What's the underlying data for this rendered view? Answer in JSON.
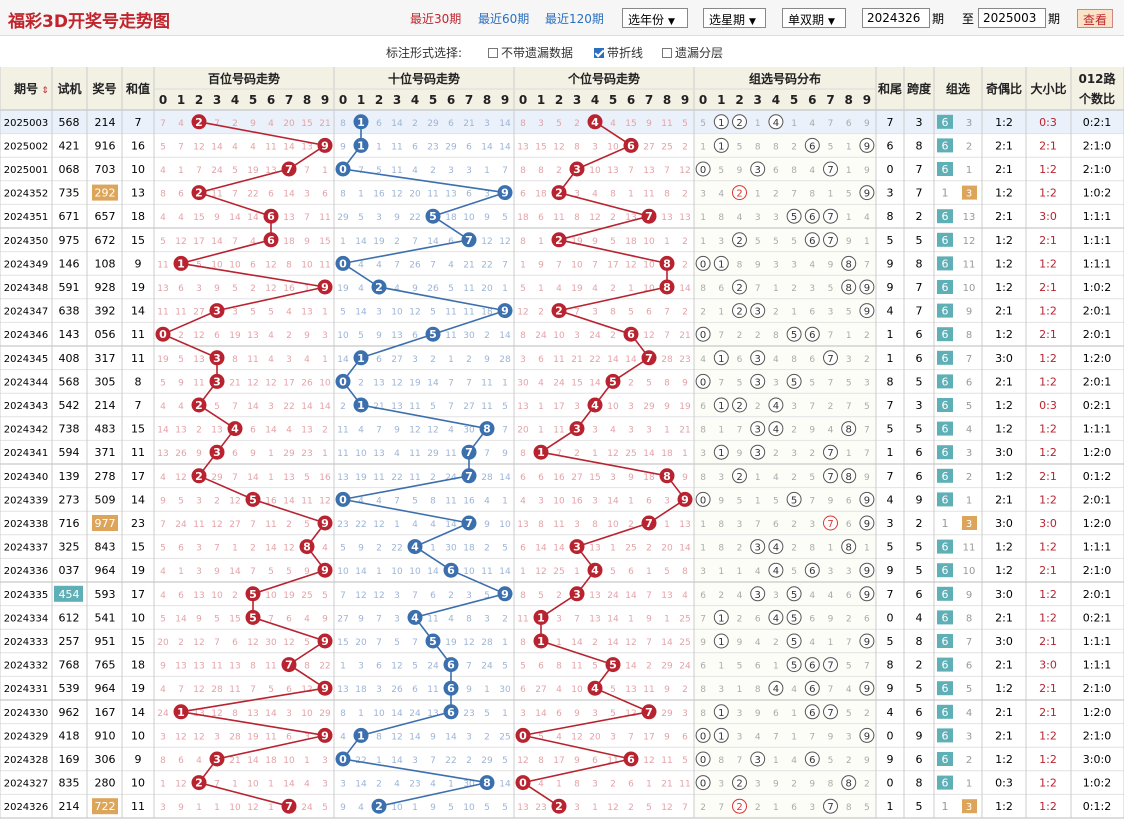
{
  "title": "福彩3D开奖号走势图",
  "period_links": [
    "最近30期",
    "最近60期",
    "最近120期"
  ],
  "selects": [
    "选年份",
    "选星期",
    "单双期"
  ],
  "range": {
    "from": "2024326",
    "unit": "期",
    "to_label": "至",
    "to": "2025003"
  },
  "query_label": "查看",
  "options": {
    "label": "标注形式选择:",
    "items": [
      {
        "label": "不带遗漏数据",
        "checked": false
      },
      {
        "label": "带折线",
        "checked": true
      },
      {
        "label": "遗漏分层",
        "checked": false
      }
    ]
  },
  "headers": {
    "issue": "期号",
    "trial": "试机",
    "prize": "奖号",
    "sum": "和值",
    "hundreds": "百位号码走势",
    "tens": "十位号码走势",
    "units": "个位号码走势",
    "group": "组选号码分布",
    "tail": "和尾",
    "span": "跨度",
    "grp": "组选",
    "oe": "奇偶比",
    "bs": "大小比",
    "r012_1": "012路",
    "r012_2": "个数比"
  },
  "digits": [
    "0",
    "1",
    "2",
    "3",
    "4",
    "5",
    "6",
    "7",
    "8",
    "9"
  ],
  "colors": {
    "red": "#b8232f",
    "blue": "#3c6fae",
    "teal": "#5fb0b6",
    "orange": "#dca55a"
  },
  "rows": [
    {
      "issue": "2025003",
      "trial": "568",
      "prize": "214",
      "sum": "7",
      "tail": "7",
      "span": "3",
      "grp6": "6",
      "grp3": "3",
      "oe": "1:2",
      "bs": "0:3",
      "r012": "0:2:1",
      "h": [
        "9",
        "6"
      ],
      "t": [
        "2",
        "1",
        "22",
        "18",
        "4",
        "19",
        "5",
        "13",
        "3"
      ],
      "u": [
        "26",
        "14",
        "3",
        "2",
        "1",
        "11",
        "1",
        "4",
        "6",
        "16"
      ]
    },
    {
      "issue": "2025002",
      "trial": "421",
      "prize": "916",
      "sum": "16",
      "tail": "6",
      "span": "8",
      "grp6": "6",
      "grp3": "2",
      "oe": "2:1",
      "bs": "2:1",
      "r012": "2:1:0"
    },
    {
      "issue": "2025001",
      "trial": "068",
      "prize": "703",
      "sum": "10",
      "tail": "0",
      "span": "7",
      "grp6": "6",
      "grp3": "1",
      "oe": "2:1",
      "bs": "1:2",
      "r012": "2:1:0"
    },
    {
      "issue": "2024352",
      "trial": "735",
      "prize": "292",
      "sum": "13",
      "tail": "3",
      "span": "7",
      "grp6": "1",
      "grp3": "3",
      "oe": "1:2",
      "bs": "1:2",
      "r012": "1:0:2",
      "badge": true
    },
    {
      "issue": "2024351",
      "trial": "671",
      "prize": "657",
      "sum": "18",
      "tail": "8",
      "span": "2",
      "grp6": "6",
      "grp3": "13",
      "oe": "2:1",
      "bs": "3:0",
      "r012": "1:1:1"
    },
    {
      "issue": "2024350",
      "trial": "975",
      "prize": "672",
      "sum": "15",
      "tail": "5",
      "span": "5",
      "grp6": "6",
      "grp3": "12",
      "oe": "1:2",
      "bs": "2:1",
      "r012": "1:1:1"
    },
    {
      "issue": "2024349",
      "trial": "146",
      "prize": "108",
      "sum": "9",
      "tail": "9",
      "span": "8",
      "grp6": "6",
      "grp3": "11",
      "oe": "1:2",
      "bs": "1:2",
      "r012": "1:1:1"
    },
    {
      "issue": "2024348",
      "trial": "591",
      "prize": "928",
      "sum": "19",
      "tail": "9",
      "span": "7",
      "grp6": "6",
      "grp3": "10",
      "oe": "1:2",
      "bs": "2:1",
      "r012": "1:0:2"
    },
    {
      "issue": "2024347",
      "trial": "638",
      "prize": "392",
      "sum": "14",
      "tail": "4",
      "span": "7",
      "grp6": "6",
      "grp3": "9",
      "oe": "2:1",
      "bs": "1:2",
      "r012": "2:0:1"
    },
    {
      "issue": "2024346",
      "trial": "143",
      "prize": "056",
      "sum": "11",
      "tail": "1",
      "span": "6",
      "grp6": "6",
      "grp3": "8",
      "oe": "1:2",
      "bs": "2:1",
      "r012": "2:0:1"
    },
    {
      "issue": "2024345",
      "trial": "408",
      "prize": "317",
      "sum": "11",
      "tail": "1",
      "span": "6",
      "grp6": "6",
      "grp3": "7",
      "oe": "3:0",
      "bs": "1:2",
      "r012": "1:2:0"
    },
    {
      "issue": "2024344",
      "trial": "568",
      "prize": "305",
      "sum": "8",
      "tail": "8",
      "span": "5",
      "grp6": "6",
      "grp3": "6",
      "oe": "2:1",
      "bs": "1:2",
      "r012": "2:0:1"
    },
    {
      "issue": "2024343",
      "trial": "542",
      "prize": "214",
      "sum": "7",
      "tail": "7",
      "span": "3",
      "grp6": "6",
      "grp3": "5",
      "oe": "1:2",
      "bs": "0:3",
      "r012": "0:2:1"
    },
    {
      "issue": "2024342",
      "trial": "738",
      "prize": "483",
      "sum": "15",
      "tail": "5",
      "span": "5",
      "grp6": "6",
      "grp3": "4",
      "oe": "1:2",
      "bs": "1:2",
      "r012": "1:1:1"
    },
    {
      "issue": "2024341",
      "trial": "594",
      "prize": "371",
      "sum": "11",
      "tail": "1",
      "span": "6",
      "grp6": "6",
      "grp3": "3",
      "oe": "3:0",
      "bs": "1:2",
      "r012": "1:2:0"
    },
    {
      "issue": "2024340",
      "trial": "139",
      "prize": "278",
      "sum": "17",
      "tail": "7",
      "span": "6",
      "grp6": "6",
      "grp3": "2",
      "oe": "1:2",
      "bs": "2:1",
      "r012": "0:1:2"
    },
    {
      "issue": "2024339",
      "trial": "273",
      "prize": "509",
      "sum": "14",
      "tail": "4",
      "span": "9",
      "grp6": "6",
      "grp3": "1",
      "oe": "2:1",
      "bs": "1:2",
      "r012": "2:0:1"
    },
    {
      "issue": "2024338",
      "trial": "716",
      "prize": "977",
      "sum": "23",
      "tail": "3",
      "span": "2",
      "grp6": "1",
      "grp3": "3",
      "oe": "3:0",
      "bs": "3:0",
      "r012": "1:2:0",
      "badge": true
    },
    {
      "issue": "2024337",
      "trial": "325",
      "prize": "843",
      "sum": "15",
      "tail": "5",
      "span": "5",
      "grp6": "6",
      "grp3": "11",
      "oe": "1:2",
      "bs": "1:2",
      "r012": "1:1:1"
    },
    {
      "issue": "2024336",
      "trial": "037",
      "prize": "964",
      "sum": "19",
      "tail": "9",
      "span": "5",
      "grp6": "6",
      "grp3": "10",
      "oe": "1:2",
      "bs": "2:1",
      "r012": "2:1:0"
    },
    {
      "issue": "2024335",
      "trial": "454",
      "prize": "593",
      "sum": "17",
      "tail": "7",
      "span": "6",
      "grp6": "6",
      "grp3": "9",
      "oe": "3:0",
      "bs": "1:2",
      "r012": "2:0:1",
      "trialBadge": true
    },
    {
      "issue": "2024334",
      "trial": "612",
      "prize": "541",
      "sum": "10",
      "tail": "0",
      "span": "4",
      "grp6": "6",
      "grp3": "8",
      "oe": "2:1",
      "bs": "1:2",
      "r012": "0:2:1"
    },
    {
      "issue": "2024333",
      "trial": "257",
      "prize": "951",
      "sum": "15",
      "tail": "5",
      "span": "8",
      "grp6": "6",
      "grp3": "7",
      "oe": "3:0",
      "bs": "2:1",
      "r012": "1:1:1"
    },
    {
      "issue": "2024332",
      "trial": "768",
      "prize": "765",
      "sum": "18",
      "tail": "8",
      "span": "2",
      "grp6": "6",
      "grp3": "6",
      "oe": "2:1",
      "bs": "3:0",
      "r012": "1:1:1"
    },
    {
      "issue": "2024331",
      "trial": "539",
      "prize": "964",
      "sum": "19",
      "tail": "9",
      "span": "5",
      "grp6": "6",
      "grp3": "5",
      "oe": "1:2",
      "bs": "2:1",
      "r012": "2:1:0"
    },
    {
      "issue": "2024330",
      "trial": "962",
      "prize": "167",
      "sum": "14",
      "tail": "4",
      "span": "6",
      "grp6": "6",
      "grp3": "4",
      "oe": "2:1",
      "bs": "2:1",
      "r012": "1:2:0"
    },
    {
      "issue": "2024329",
      "trial": "418",
      "prize": "910",
      "sum": "10",
      "tail": "0",
      "span": "9",
      "grp6": "6",
      "grp3": "3",
      "oe": "2:1",
      "bs": "1:2",
      "r012": "2:1:0"
    },
    {
      "issue": "2024328",
      "trial": "169",
      "prize": "306",
      "sum": "9",
      "tail": "9",
      "span": "6",
      "grp6": "6",
      "grp3": "2",
      "oe": "1:2",
      "bs": "1:2",
      "r012": "3:0:0"
    },
    {
      "issue": "2024327",
      "trial": "835",
      "prize": "280",
      "sum": "10",
      "tail": "0",
      "span": "8",
      "grp6": "6",
      "grp3": "1",
      "oe": "0:3",
      "bs": "1:2",
      "r012": "1:0:2"
    },
    {
      "issue": "2024326",
      "trial": "214",
      "prize": "722",
      "sum": "11",
      "tail": "1",
      "span": "5",
      "grp6": "1",
      "grp3": "3",
      "oe": "1:2",
      "bs": "1:2",
      "r012": "0:1:2",
      "badge": true
    }
  ]
}
